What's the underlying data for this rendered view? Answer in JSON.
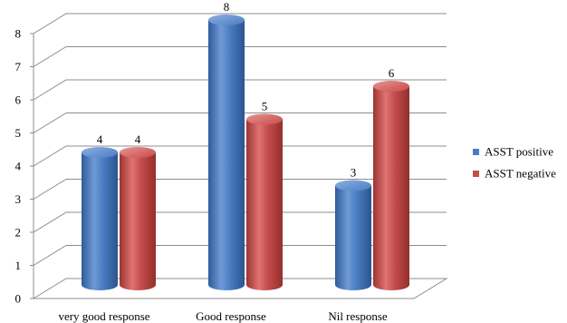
{
  "chart_data": {
    "type": "bar",
    "categories": [
      "very good response",
      "Good response",
      "Nil response"
    ],
    "series": [
      {
        "name": "ASST positive",
        "values": [
          4,
          8,
          3
        ],
        "color": "#4a7cc3"
      },
      {
        "name": "ASST negative",
        "values": [
          4,
          5,
          6
        ],
        "color": "#c44c4a"
      }
    ],
    "ylim": [
      0,
      8
    ],
    "yticks": [
      0,
      1,
      2,
      3,
      4,
      5,
      6,
      7,
      8
    ],
    "grid": true,
    "legend_position": "right",
    "data_labels": true,
    "style": "3d-cylinder"
  }
}
